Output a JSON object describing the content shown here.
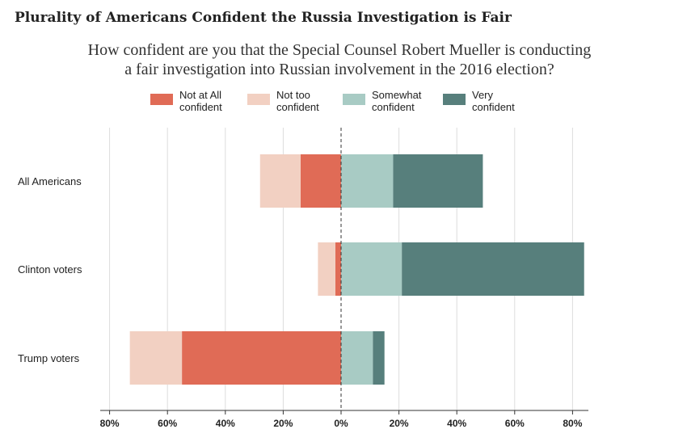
{
  "title": "Plurality of Americans Confident the Russia Investigation is Fair",
  "subtitle": {
    "line1": "How confident are you that the Special Counsel Robert Mueller is conducting",
    "line2": "a fair investigation into Russian involvement in the 2016 election?"
  },
  "legend": [
    {
      "line1": "Not at All",
      "line2": "confident",
      "color": "#e06b56"
    },
    {
      "line1": "Not too",
      "line2": "confident",
      "color": "#f2d0c2"
    },
    {
      "line1": "Somewhat",
      "line2": "confident",
      "color": "#a8cbc4"
    },
    {
      "line1": "Very",
      "line2": "confident",
      "color": "#577f7c"
    }
  ],
  "chart_data": {
    "type": "bar",
    "orientation": "horizontal-diverging",
    "categories": [
      "All Americans",
      "Clinton voters",
      "Trump voters"
    ],
    "series": [
      {
        "name": "Not at All confident",
        "values": [
          14,
          2,
          55
        ],
        "side": "negative",
        "color": "#e06b56"
      },
      {
        "name": "Not too confident",
        "values": [
          14,
          6,
          18
        ],
        "side": "negative",
        "color": "#f2d0c2"
      },
      {
        "name": "Somewhat confident",
        "values": [
          18,
          21,
          11
        ],
        "side": "positive",
        "color": "#a8cbc4"
      },
      {
        "name": "Very confident",
        "values": [
          31,
          63,
          4
        ],
        "side": "positive",
        "color": "#577f7c"
      }
    ],
    "xlim": [
      -80,
      85
    ],
    "xticks": [
      -80,
      -60,
      -40,
      -20,
      0,
      20,
      40,
      60,
      80
    ],
    "xtick_labels": [
      "80%",
      "60%",
      "40%",
      "20%",
      "0%",
      "20%",
      "40%",
      "60%",
      "80%"
    ],
    "grid": true,
    "legend_position": "top"
  }
}
